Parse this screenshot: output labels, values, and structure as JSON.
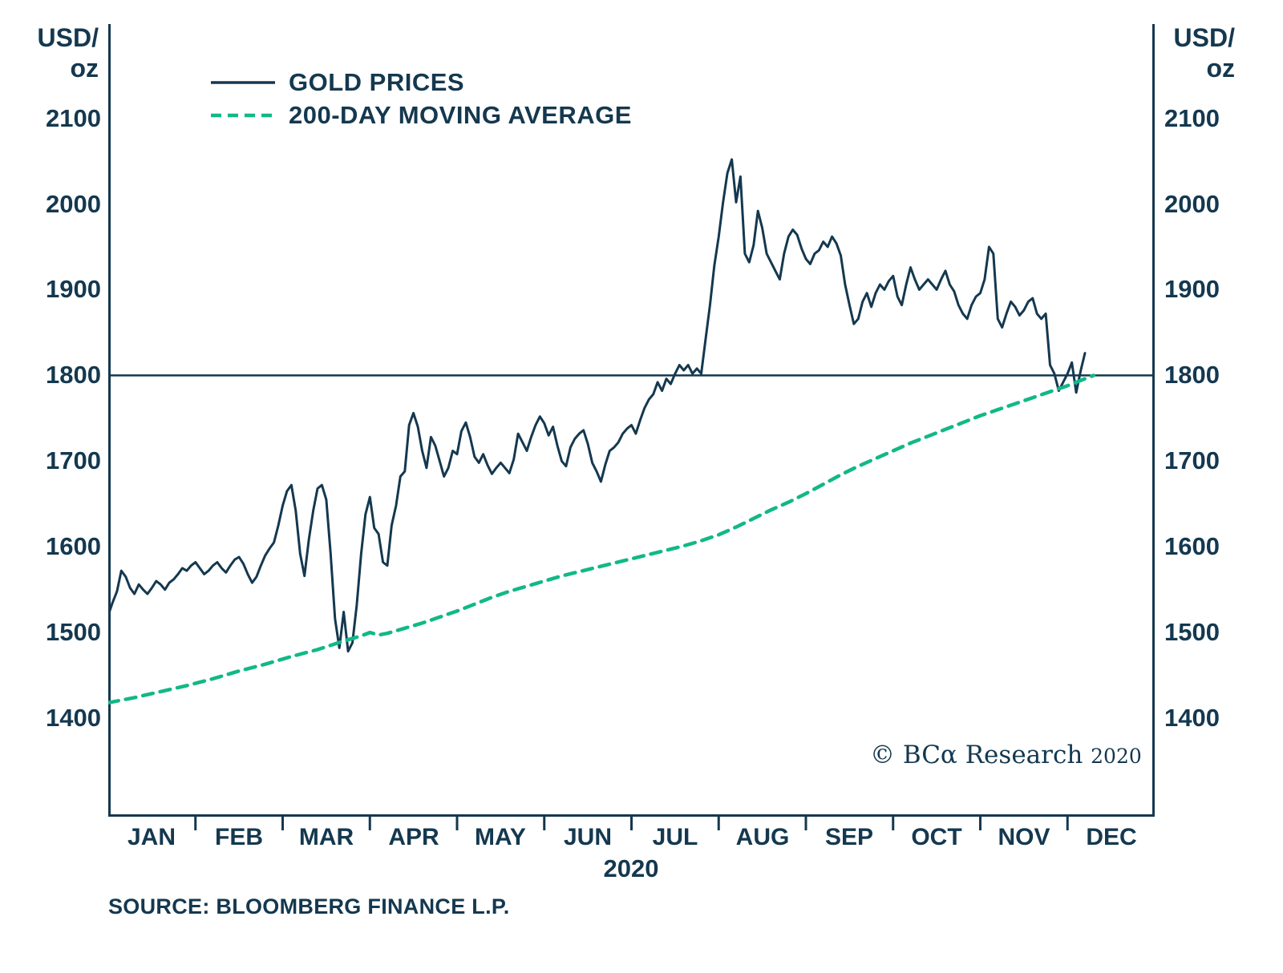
{
  "y_axis_unit": {
    "line1": "USD/",
    "line2": "oz"
  },
  "source": "SOURCE: BLOOMBERG FINANCE L.P.",
  "watermark": {
    "text": "© BCα Research",
    "year": "2020"
  },
  "chart_data": {
    "type": "line",
    "title": "",
    "x_axis": {
      "label": "2020",
      "months": [
        "JAN",
        "FEB",
        "MAR",
        "APR",
        "MAY",
        "JUN",
        "JUL",
        "AUG",
        "SEP",
        "OCT",
        "NOV",
        "DEC"
      ]
    },
    "y_axis": {
      "unit": "USD/oz",
      "ticks": [
        2100,
        2000,
        1900,
        1800,
        1700,
        1600,
        1500,
        1400
      ],
      "range": [
        1285,
        2210
      ],
      "ylim": [
        1400,
        2100
      ]
    },
    "reference_line": 1800,
    "grid": false,
    "legend_position": "top-left",
    "axis_color": "#14384f",
    "legend": [
      {
        "label": "GOLD PRICES",
        "style": "solid",
        "color": "#14384f"
      },
      {
        "label": "200-DAY MOVING AVERAGE",
        "style": "dashed",
        "color": "#12b886"
      }
    ],
    "series": [
      {
        "name": "GOLD PRICES",
        "style": "solid",
        "color": "#14384f",
        "points": [
          [
            0.0,
            1520
          ],
          [
            0.05,
            1535
          ],
          [
            0.1,
            1548
          ],
          [
            0.15,
            1572
          ],
          [
            0.2,
            1565
          ],
          [
            0.25,
            1552
          ],
          [
            0.3,
            1545
          ],
          [
            0.35,
            1556
          ],
          [
            0.4,
            1550
          ],
          [
            0.45,
            1545
          ],
          [
            0.5,
            1552
          ],
          [
            0.55,
            1560
          ],
          [
            0.6,
            1556
          ],
          [
            0.65,
            1550
          ],
          [
            0.7,
            1558
          ],
          [
            0.75,
            1562
          ],
          [
            0.8,
            1568
          ],
          [
            0.85,
            1575
          ],
          [
            0.9,
            1572
          ],
          [
            0.95,
            1578
          ],
          [
            1.0,
            1582
          ],
          [
            1.05,
            1575
          ],
          [
            1.1,
            1568
          ],
          [
            1.15,
            1572
          ],
          [
            1.2,
            1578
          ],
          [
            1.25,
            1582
          ],
          [
            1.3,
            1575
          ],
          [
            1.35,
            1570
          ],
          [
            1.4,
            1578
          ],
          [
            1.45,
            1585
          ],
          [
            1.5,
            1588
          ],
          [
            1.55,
            1580
          ],
          [
            1.6,
            1568
          ],
          [
            1.65,
            1558
          ],
          [
            1.7,
            1565
          ],
          [
            1.75,
            1578
          ],
          [
            1.8,
            1590
          ],
          [
            1.85,
            1598
          ],
          [
            1.9,
            1605
          ],
          [
            1.95,
            1625
          ],
          [
            2.0,
            1648
          ],
          [
            2.05,
            1665
          ],
          [
            2.1,
            1672
          ],
          [
            2.15,
            1642
          ],
          [
            2.2,
            1592
          ],
          [
            2.25,
            1566
          ],
          [
            2.3,
            1608
          ],
          [
            2.35,
            1642
          ],
          [
            2.4,
            1668
          ],
          [
            2.45,
            1672
          ],
          [
            2.5,
            1655
          ],
          [
            2.55,
            1592
          ],
          [
            2.6,
            1516
          ],
          [
            2.65,
            1482
          ],
          [
            2.7,
            1524
          ],
          [
            2.75,
            1478
          ],
          [
            2.8,
            1488
          ],
          [
            2.85,
            1532
          ],
          [
            2.9,
            1592
          ],
          [
            2.95,
            1638
          ],
          [
            3.0,
            1658
          ],
          [
            3.05,
            1622
          ],
          [
            3.1,
            1615
          ],
          [
            3.15,
            1582
          ],
          [
            3.2,
            1578
          ],
          [
            3.25,
            1625
          ],
          [
            3.3,
            1648
          ],
          [
            3.35,
            1682
          ],
          [
            3.4,
            1688
          ],
          [
            3.45,
            1742
          ],
          [
            3.5,
            1756
          ],
          [
            3.55,
            1740
          ],
          [
            3.6,
            1712
          ],
          [
            3.65,
            1692
          ],
          [
            3.7,
            1728
          ],
          [
            3.75,
            1718
          ],
          [
            3.8,
            1700
          ],
          [
            3.85,
            1682
          ],
          [
            3.9,
            1692
          ],
          [
            3.95,
            1712
          ],
          [
            4.0,
            1708
          ],
          [
            4.05,
            1735
          ],
          [
            4.1,
            1745
          ],
          [
            4.15,
            1728
          ],
          [
            4.2,
            1705
          ],
          [
            4.25,
            1698
          ],
          [
            4.3,
            1708
          ],
          [
            4.35,
            1695
          ],
          [
            4.4,
            1685
          ],
          [
            4.45,
            1692
          ],
          [
            4.5,
            1698
          ],
          [
            4.55,
            1692
          ],
          [
            4.6,
            1686
          ],
          [
            4.65,
            1702
          ],
          [
            4.7,
            1732
          ],
          [
            4.75,
            1722
          ],
          [
            4.8,
            1712
          ],
          [
            4.85,
            1728
          ],
          [
            4.9,
            1742
          ],
          [
            4.95,
            1752
          ],
          [
            5.0,
            1744
          ],
          [
            5.05,
            1730
          ],
          [
            5.1,
            1740
          ],
          [
            5.15,
            1718
          ],
          [
            5.2,
            1700
          ],
          [
            5.25,
            1694
          ],
          [
            5.3,
            1716
          ],
          [
            5.35,
            1726
          ],
          [
            5.4,
            1732
          ],
          [
            5.45,
            1736
          ],
          [
            5.5,
            1720
          ],
          [
            5.55,
            1698
          ],
          [
            5.6,
            1688
          ],
          [
            5.65,
            1676
          ],
          [
            5.7,
            1696
          ],
          [
            5.75,
            1712
          ],
          [
            5.8,
            1716
          ],
          [
            5.85,
            1722
          ],
          [
            5.9,
            1732
          ],
          [
            5.95,
            1738
          ],
          [
            6.0,
            1742
          ],
          [
            6.05,
            1732
          ],
          [
            6.1,
            1748
          ],
          [
            6.15,
            1762
          ],
          [
            6.2,
            1772
          ],
          [
            6.25,
            1778
          ],
          [
            6.3,
            1792
          ],
          [
            6.35,
            1782
          ],
          [
            6.4,
            1796
          ],
          [
            6.45,
            1790
          ],
          [
            6.5,
            1802
          ],
          [
            6.55,
            1812
          ],
          [
            6.6,
            1806
          ],
          [
            6.65,
            1812
          ],
          [
            6.7,
            1802
          ],
          [
            6.75,
            1808
          ],
          [
            6.8,
            1802
          ],
          [
            6.85,
            1842
          ],
          [
            6.9,
            1882
          ],
          [
            6.95,
            1928
          ],
          [
            7.0,
            1962
          ],
          [
            7.05,
            2002
          ],
          [
            7.1,
            2036
          ],
          [
            7.15,
            2052
          ],
          [
            7.2,
            2002
          ],
          [
            7.25,
            2032
          ],
          [
            7.3,
            1942
          ],
          [
            7.35,
            1932
          ],
          [
            7.4,
            1952
          ],
          [
            7.45,
            1992
          ],
          [
            7.5,
            1972
          ],
          [
            7.55,
            1942
          ],
          [
            7.6,
            1932
          ],
          [
            7.65,
            1922
          ],
          [
            7.7,
            1912
          ],
          [
            7.75,
            1942
          ],
          [
            7.8,
            1962
          ],
          [
            7.85,
            1970
          ],
          [
            7.9,
            1964
          ],
          [
            7.95,
            1948
          ],
          [
            8.0,
            1936
          ],
          [
            8.05,
            1930
          ],
          [
            8.1,
            1942
          ],
          [
            8.15,
            1946
          ],
          [
            8.2,
            1956
          ],
          [
            8.25,
            1950
          ],
          [
            8.3,
            1962
          ],
          [
            8.35,
            1954
          ],
          [
            8.4,
            1940
          ],
          [
            8.45,
            1906
          ],
          [
            8.5,
            1882
          ],
          [
            8.55,
            1860
          ],
          [
            8.6,
            1866
          ],
          [
            8.65,
            1886
          ],
          [
            8.7,
            1896
          ],
          [
            8.75,
            1880
          ],
          [
            8.8,
            1896
          ],
          [
            8.85,
            1906
          ],
          [
            8.9,
            1900
          ],
          [
            8.95,
            1910
          ],
          [
            9.0,
            1916
          ],
          [
            9.05,
            1892
          ],
          [
            9.1,
            1882
          ],
          [
            9.15,
            1906
          ],
          [
            9.2,
            1926
          ],
          [
            9.25,
            1912
          ],
          [
            9.3,
            1900
          ],
          [
            9.35,
            1906
          ],
          [
            9.4,
            1912
          ],
          [
            9.45,
            1906
          ],
          [
            9.5,
            1900
          ],
          [
            9.55,
            1912
          ],
          [
            9.6,
            1922
          ],
          [
            9.65,
            1906
          ],
          [
            9.7,
            1898
          ],
          [
            9.75,
            1882
          ],
          [
            9.8,
            1872
          ],
          [
            9.85,
            1866
          ],
          [
            9.9,
            1882
          ],
          [
            9.95,
            1892
          ],
          [
            10.0,
            1896
          ],
          [
            10.05,
            1912
          ],
          [
            10.1,
            1950
          ],
          [
            10.15,
            1942
          ],
          [
            10.2,
            1866
          ],
          [
            10.25,
            1856
          ],
          [
            10.3,
            1872
          ],
          [
            10.35,
            1886
          ],
          [
            10.4,
            1880
          ],
          [
            10.45,
            1870
          ],
          [
            10.5,
            1876
          ],
          [
            10.55,
            1886
          ],
          [
            10.6,
            1890
          ],
          [
            10.65,
            1872
          ],
          [
            10.7,
            1866
          ],
          [
            10.75,
            1872
          ],
          [
            10.8,
            1812
          ],
          [
            10.85,
            1802
          ],
          [
            10.9,
            1782
          ],
          [
            10.95,
            1792
          ],
          [
            11.0,
            1802
          ],
          [
            11.05,
            1815
          ],
          [
            11.1,
            1780
          ],
          [
            11.15,
            1805
          ],
          [
            11.2,
            1826
          ]
        ]
      },
      {
        "name": "200-DAY MOVING AVERAGE",
        "style": "dashed",
        "color": "#12b886",
        "points": [
          [
            0.0,
            1418
          ],
          [
            0.3,
            1424
          ],
          [
            0.6,
            1431
          ],
          [
            0.9,
            1438
          ],
          [
            1.2,
            1446
          ],
          [
            1.5,
            1455
          ],
          [
            1.8,
            1463
          ],
          [
            2.1,
            1472
          ],
          [
            2.4,
            1480
          ],
          [
            2.7,
            1490
          ],
          [
            2.9,
            1496
          ],
          [
            3.0,
            1500
          ],
          [
            3.1,
            1497
          ],
          [
            3.2,
            1499
          ],
          [
            3.4,
            1505
          ],
          [
            3.6,
            1511
          ],
          [
            3.8,
            1518
          ],
          [
            4.0,
            1525
          ],
          [
            4.2,
            1533
          ],
          [
            4.4,
            1541
          ],
          [
            4.6,
            1548
          ],
          [
            4.8,
            1554
          ],
          [
            5.0,
            1560
          ],
          [
            5.2,
            1566
          ],
          [
            5.4,
            1571
          ],
          [
            5.6,
            1576
          ],
          [
            5.8,
            1581
          ],
          [
            6.0,
            1586
          ],
          [
            6.2,
            1591
          ],
          [
            6.4,
            1596
          ],
          [
            6.6,
            1601
          ],
          [
            6.8,
            1607
          ],
          [
            7.0,
            1614
          ],
          [
            7.2,
            1623
          ],
          [
            7.4,
            1633
          ],
          [
            7.6,
            1643
          ],
          [
            7.8,
            1652
          ],
          [
            8.0,
            1662
          ],
          [
            8.2,
            1673
          ],
          [
            8.4,
            1684
          ],
          [
            8.6,
            1694
          ],
          [
            8.8,
            1703
          ],
          [
            9.0,
            1712
          ],
          [
            9.2,
            1721
          ],
          [
            9.4,
            1729
          ],
          [
            9.6,
            1737
          ],
          [
            9.8,
            1745
          ],
          [
            10.0,
            1753
          ],
          [
            10.2,
            1760
          ],
          [
            10.4,
            1767
          ],
          [
            10.6,
            1774
          ],
          [
            10.8,
            1781
          ],
          [
            11.0,
            1788
          ],
          [
            11.1,
            1792
          ],
          [
            11.2,
            1796
          ],
          [
            11.3,
            1800
          ]
        ]
      }
    ]
  }
}
